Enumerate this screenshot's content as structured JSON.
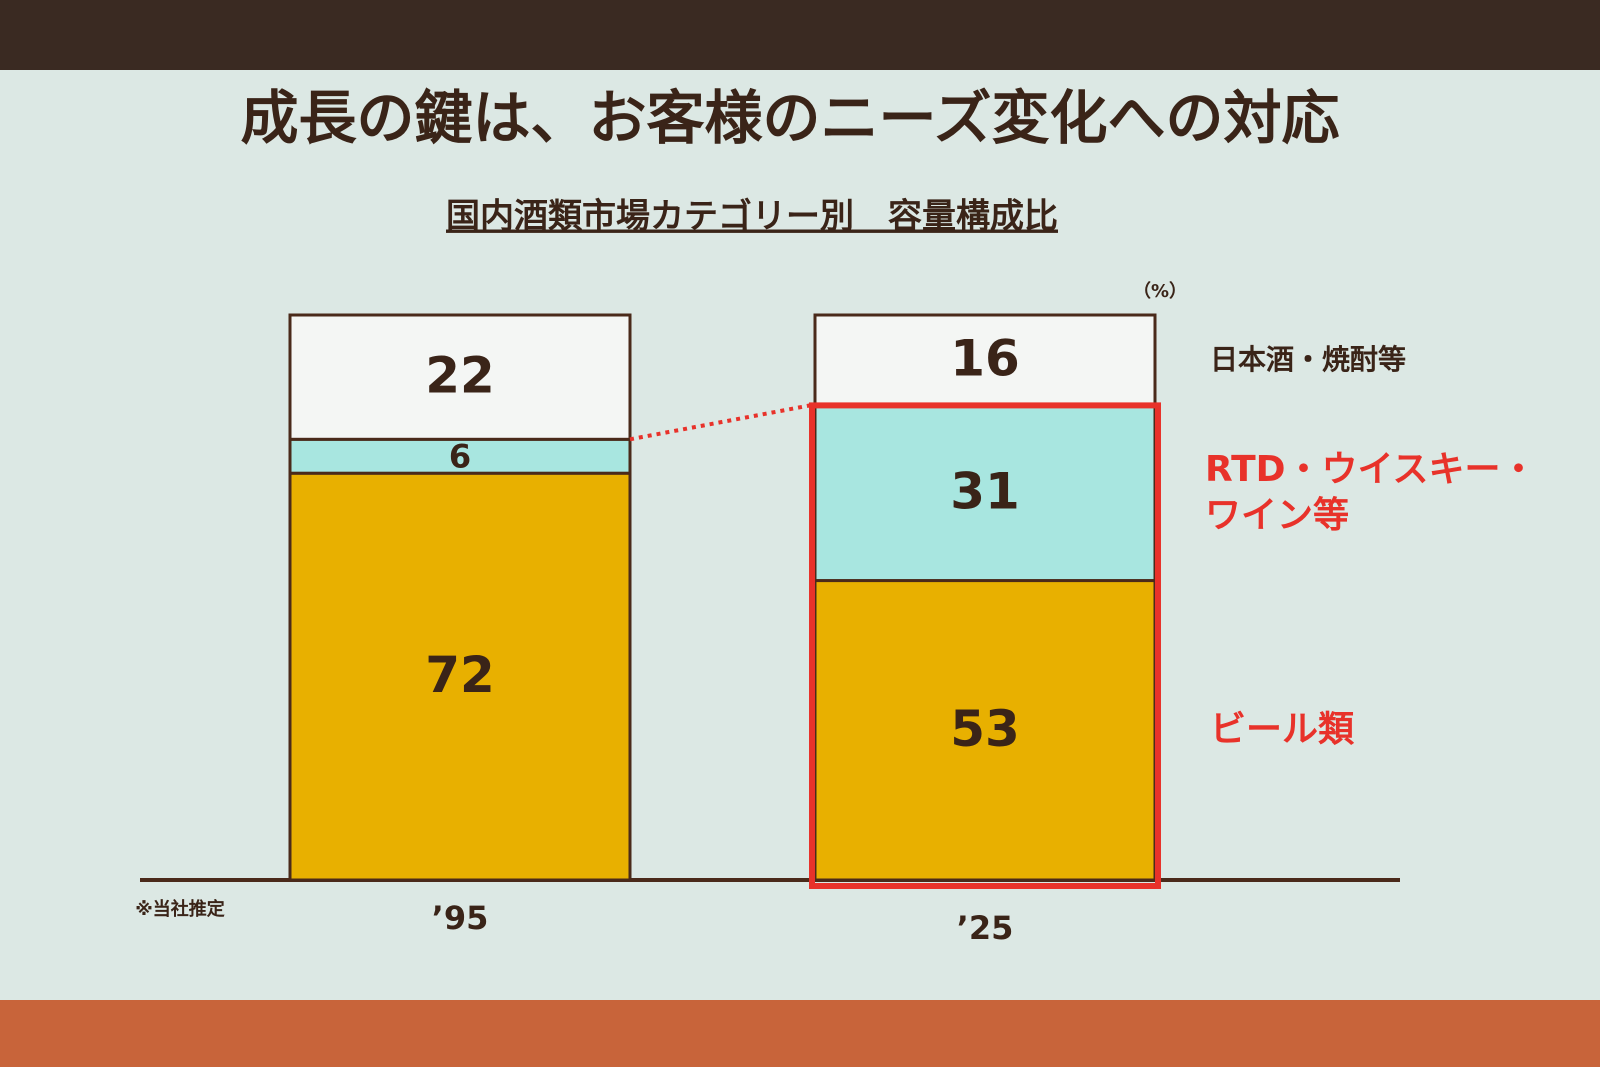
{
  "chart_data": {
    "type": "stacked_bar",
    "title": "成長の鍵は、お客様のニーズ変化への対応",
    "subtitle": "国内酒類市場カテゴリー別　容量構成比",
    "unit": "（%）",
    "note": "※当社推定",
    "categories": [
      "’95",
      "’25"
    ],
    "series": [
      {
        "name": "ビール類",
        "color": "#e8b000",
        "label_color": "#e8322a",
        "values": [
          72,
          53
        ]
      },
      {
        "name": "RTD・ウイスキー・ワイン等",
        "color": "#a8e6e0",
        "label_color": "#e8322a",
        "values": [
          6,
          31
        ]
      },
      {
        "name": "日本酒・焼酎等",
        "color": "#f4f6f4",
        "label_color": "#3a2418",
        "values": [
          22,
          16
        ]
      }
    ]
  }
}
